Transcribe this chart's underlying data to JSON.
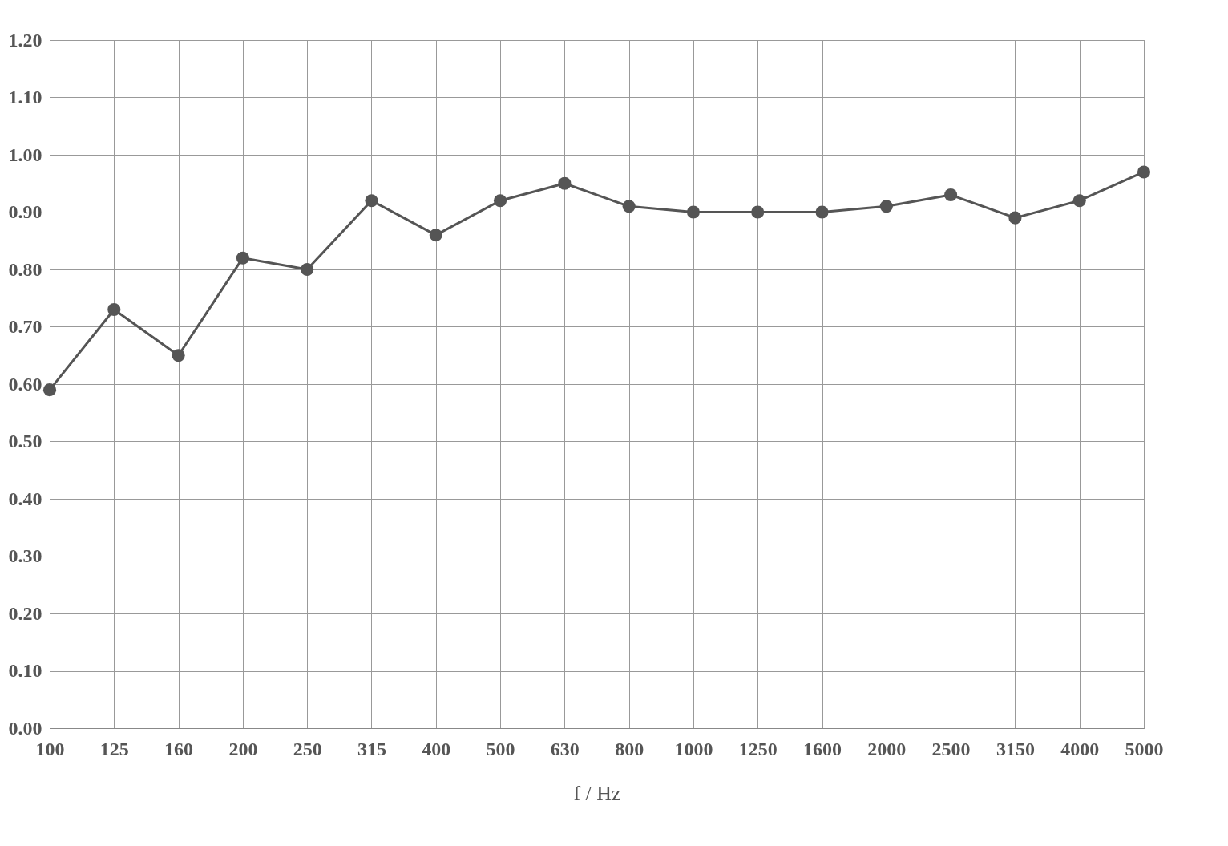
{
  "chart_data": {
    "type": "line",
    "xlabel": "f / Hz",
    "categories": [
      "100",
      "125",
      "160",
      "200",
      "250",
      "315",
      "400",
      "500",
      "630",
      "800",
      "1000",
      "1250",
      "1600",
      "2000",
      "2500",
      "3150",
      "4000",
      "5000"
    ],
    "series": [
      {
        "color": "#555555",
        "values": [
          0.59,
          0.73,
          0.65,
          0.82,
          0.8,
          0.92,
          0.86,
          0.92,
          0.95,
          0.91,
          0.9,
          0.9,
          0.9,
          0.91,
          0.93,
          0.89,
          0.92,
          0.97
        ]
      }
    ],
    "ylim": [
      0,
      1.2
    ],
    "yticks": [
      {
        "value": 0,
        "label": "0.00"
      },
      {
        "value": 0.1,
        "label": "0.10"
      },
      {
        "value": 0.2,
        "label": "0.20"
      },
      {
        "value": 0.3,
        "label": "0.30"
      },
      {
        "value": 0.4,
        "label": "0.40"
      },
      {
        "value": 0.5,
        "label": "0.50"
      },
      {
        "value": 0.6,
        "label": "0.60"
      },
      {
        "value": 0.7,
        "label": "0.70"
      },
      {
        "value": 0.8,
        "label": "0.80"
      },
      {
        "value": 0.9,
        "label": "0.90"
      },
      {
        "value": 1.0,
        "label": "1.00"
      },
      {
        "value": 1.1,
        "label": "1.10"
      },
      {
        "value": 1.2,
        "label": "1.20"
      }
    ],
    "grid": true,
    "marker": "circle",
    "line_style": "solid"
  }
}
